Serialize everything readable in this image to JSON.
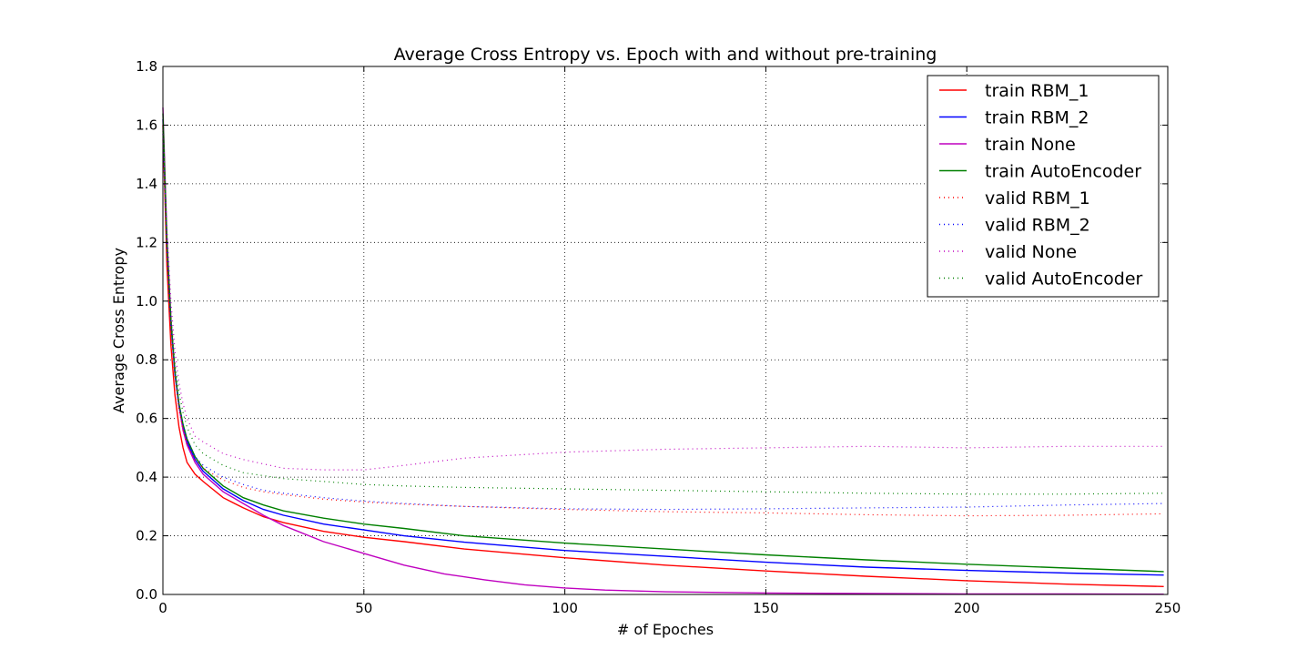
{
  "chart_data": {
    "type": "line",
    "title": "Average Cross Entropy vs. Epoch with and without pre-training",
    "xlabel": "# of Epoches",
    "ylabel": "Average Cross Entropy",
    "xlim": [
      0,
      250
    ],
    "ylim": [
      0.0,
      1.8
    ],
    "xticks": [
      0,
      50,
      100,
      150,
      200,
      250
    ],
    "yticks": [
      0.0,
      0.2,
      0.4,
      0.6,
      0.8,
      1.0,
      1.2,
      1.4,
      1.6,
      1.8
    ],
    "ytick_labels": [
      "0.0",
      "0.2",
      "0.4",
      "0.6",
      "0.8",
      "1.0",
      "1.2",
      "1.4",
      "1.6",
      "1.8"
    ],
    "grid": true,
    "legend_position": "top-right",
    "series": [
      {
        "name": "train RBM_1",
        "color": "#ff0000",
        "style": "solid",
        "x": [
          0,
          1,
          2,
          3,
          4,
          5,
          6,
          8,
          10,
          15,
          20,
          25,
          30,
          40,
          50,
          60,
          75,
          100,
          125,
          150,
          175,
          200,
          225,
          249
        ],
        "values": [
          1.6,
          1.12,
          0.85,
          0.68,
          0.57,
          0.5,
          0.45,
          0.41,
          0.385,
          0.33,
          0.295,
          0.265,
          0.245,
          0.215,
          0.195,
          0.18,
          0.155,
          0.125,
          0.1,
          0.08,
          0.062,
          0.047,
          0.035,
          0.027
        ]
      },
      {
        "name": "train RBM_2",
        "color": "#0000ff",
        "style": "solid",
        "x": [
          0,
          1,
          2,
          3,
          4,
          5,
          6,
          8,
          10,
          15,
          20,
          25,
          30,
          40,
          50,
          60,
          75,
          100,
          125,
          150,
          175,
          200,
          225,
          249
        ],
        "values": [
          1.62,
          1.2,
          0.92,
          0.75,
          0.64,
          0.57,
          0.52,
          0.46,
          0.42,
          0.36,
          0.32,
          0.29,
          0.27,
          0.24,
          0.22,
          0.2,
          0.178,
          0.15,
          0.13,
          0.11,
          0.093,
          0.082,
          0.073,
          0.066
        ]
      },
      {
        "name": "train None",
        "color": "#bf00bf",
        "style": "solid",
        "x": [
          0,
          1,
          2,
          3,
          4,
          5,
          6,
          8,
          10,
          15,
          20,
          25,
          30,
          40,
          50,
          60,
          70,
          80,
          90,
          100,
          110,
          125,
          150,
          175,
          200,
          225,
          249
        ],
        "values": [
          1.66,
          1.22,
          0.94,
          0.76,
          0.64,
          0.56,
          0.51,
          0.45,
          0.41,
          0.35,
          0.31,
          0.27,
          0.235,
          0.18,
          0.14,
          0.1,
          0.07,
          0.05,
          0.033,
          0.022,
          0.015,
          0.009,
          0.005,
          0.003,
          0.002,
          0.0015,
          0.001
        ]
      },
      {
        "name": "train AutoEncoder",
        "color": "#008000",
        "style": "solid",
        "x": [
          0,
          1,
          2,
          3,
          4,
          5,
          6,
          8,
          10,
          15,
          20,
          25,
          30,
          40,
          50,
          60,
          75,
          100,
          125,
          150,
          175,
          200,
          225,
          249
        ],
        "values": [
          1.64,
          1.2,
          0.93,
          0.76,
          0.65,
          0.58,
          0.53,
          0.47,
          0.43,
          0.37,
          0.33,
          0.305,
          0.285,
          0.26,
          0.24,
          0.225,
          0.2,
          0.175,
          0.155,
          0.135,
          0.118,
          0.103,
          0.09,
          0.078
        ]
      },
      {
        "name": "valid RBM_1",
        "color": "#ff0000",
        "style": "dotted",
        "x": [
          0,
          1,
          2,
          3,
          4,
          5,
          6,
          8,
          10,
          15,
          20,
          25,
          30,
          40,
          50,
          60,
          75,
          100,
          125,
          150,
          175,
          200,
          225,
          249
        ],
        "values": [
          1.55,
          1.15,
          0.9,
          0.74,
          0.63,
          0.56,
          0.51,
          0.46,
          0.43,
          0.39,
          0.365,
          0.35,
          0.34,
          0.325,
          0.315,
          0.308,
          0.3,
          0.29,
          0.282,
          0.278,
          0.272,
          0.268,
          0.27,
          0.275
        ]
      },
      {
        "name": "valid RBM_2",
        "color": "#0000ff",
        "style": "dotted",
        "x": [
          0,
          1,
          2,
          3,
          4,
          5,
          6,
          8,
          10,
          15,
          20,
          25,
          30,
          40,
          50,
          60,
          75,
          100,
          125,
          150,
          175,
          200,
          225,
          249
        ],
        "values": [
          1.57,
          1.18,
          0.92,
          0.76,
          0.65,
          0.58,
          0.53,
          0.47,
          0.44,
          0.4,
          0.375,
          0.355,
          0.345,
          0.33,
          0.318,
          0.31,
          0.3,
          0.292,
          0.29,
          0.292,
          0.295,
          0.298,
          0.305,
          0.31
        ]
      },
      {
        "name": "valid None",
        "color": "#bf00bf",
        "style": "dotted",
        "x": [
          0,
          1,
          2,
          3,
          4,
          5,
          6,
          8,
          10,
          15,
          20,
          25,
          30,
          40,
          50,
          60,
          75,
          100,
          125,
          150,
          175,
          200,
          225,
          249
        ],
        "values": [
          1.6,
          1.25,
          1.0,
          0.83,
          0.72,
          0.65,
          0.6,
          0.54,
          0.52,
          0.48,
          0.46,
          0.445,
          0.43,
          0.425,
          0.425,
          0.44,
          0.465,
          0.485,
          0.495,
          0.5,
          0.505,
          0.5,
          0.505,
          0.505
        ]
      },
      {
        "name": "valid AutoEncoder",
        "color": "#008000",
        "style": "dotted",
        "x": [
          0,
          1,
          2,
          3,
          4,
          5,
          6,
          8,
          10,
          15,
          20,
          25,
          30,
          40,
          50,
          60,
          75,
          100,
          125,
          150,
          175,
          200,
          225,
          249
        ],
        "values": [
          1.58,
          1.2,
          0.95,
          0.79,
          0.69,
          0.62,
          0.57,
          0.51,
          0.48,
          0.44,
          0.415,
          0.405,
          0.395,
          0.385,
          0.375,
          0.37,
          0.365,
          0.36,
          0.355,
          0.35,
          0.345,
          0.342,
          0.342,
          0.345
        ]
      }
    ]
  }
}
